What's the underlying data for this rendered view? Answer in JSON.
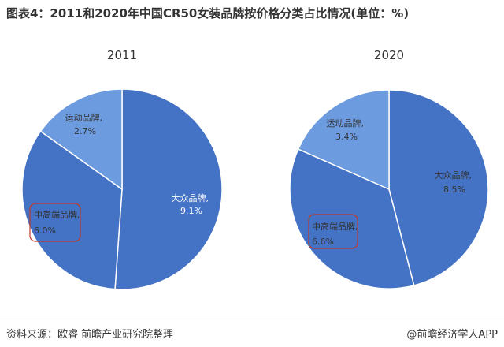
{
  "title": "图表4：2011和2020年中国CR50女装品牌按价格分类占比情况(单位：%)",
  "source": "资料来源：欧睿 前瞻产业研究院整理",
  "brand": "@前瞻经济学人APP",
  "colors": {
    "dark_blue": "#4472c4",
    "light_blue": "#6c9be0",
    "highlight_box": "#c0392b",
    "label_text": "#333333"
  },
  "chart_data": [
    {
      "type": "pie",
      "title": "2011",
      "slices": [
        {
          "label": "大众品牌,",
          "value_text": "9.1%",
          "value": 9.1
        },
        {
          "label": "中高端品牌,",
          "value_text": "6.0%",
          "value": 6.0
        },
        {
          "label": "运动品牌,",
          "value_text": "2.7%",
          "value": 2.7
        }
      ]
    },
    {
      "type": "pie",
      "title": "2020",
      "slices": [
        {
          "label": "大众品牌,",
          "value_text": "8.5%",
          "value": 8.5
        },
        {
          "label": "中高端品牌,",
          "value_text": "6.6%",
          "value": 6.6
        },
        {
          "label": "运动品牌,",
          "value_text": "3.4%",
          "value": 3.4
        }
      ]
    }
  ]
}
